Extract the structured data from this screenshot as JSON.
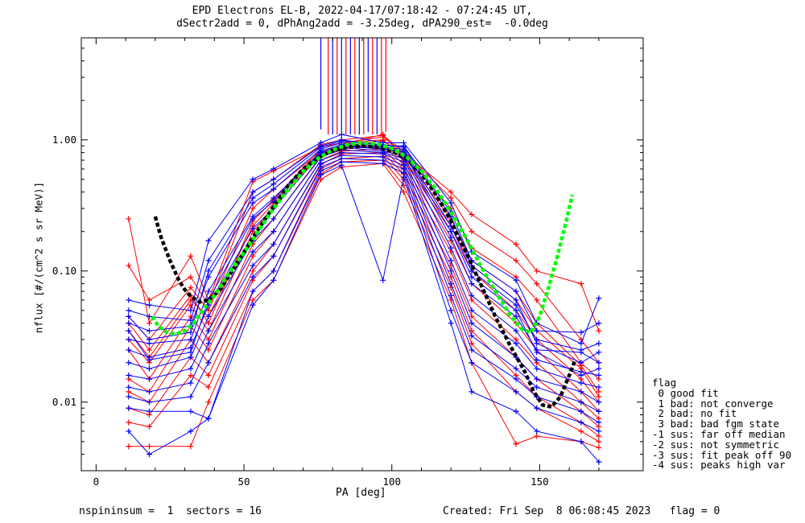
{
  "header": {
    "title_line1": "EPD Electrons EL-B, 2022-04-17/07:18:42 - 07:24:45 UT,",
    "title_line2": "dSectr2add = 0, dPhAng2add = -3.25deg, dPA290_est=  -0.0deg"
  },
  "legend": {
    "title": "flag",
    "items": [
      " 0 good fit",
      " 1 bad: not converge",
      " 2 bad: no fit",
      " 3 bad: bad fgm state",
      "-1 sus: far off median",
      "-2 sus: not symmetric",
      "-3 sus: fit peak off 90",
      "-4 sus: peaks high var"
    ]
  },
  "footer": {
    "left": "nspininsum =  1  sectors = 16",
    "right": "Created: Fri Sep  8 06:08:45 2023   flag = 0"
  },
  "colors": {
    "red": "#ff0000",
    "blue": "#0000ff",
    "black_fit": "#000000",
    "green_fit": "#00ff00"
  },
  "chart_data": {
    "type": "line",
    "xlabel": "PA [deg]",
    "ylabel": "nflux [#/(cm^2 s sr MeV)]",
    "xlim": [
      -5,
      185
    ],
    "ylim": [
      0.003,
      6
    ],
    "yscale": "log",
    "xticks": [
      0,
      50,
      100,
      150
    ],
    "yticks": [
      0.01,
      0.1,
      1.0
    ],
    "ytick_labels": [
      "0.01",
      "0.10",
      "1.00"
    ],
    "grid": false,
    "sector_pa": [
      11,
      18,
      32,
      38,
      53,
      60,
      76,
      83,
      97,
      104,
      120,
      127,
      142,
      149,
      164,
      170
    ],
    "series": [
      {
        "color": "red",
        "values": [
          0.25,
          0.04,
          0.13,
          0.06,
          0.48,
          0.58,
          0.88,
          0.95,
          1.05,
          0.8,
          0.4,
          0.27,
          0.16,
          0.1,
          0.08,
          0.035
        ]
      },
      {
        "color": "red",
        "values": [
          0.11,
          0.06,
          0.09,
          0.055,
          0.4,
          0.5,
          0.92,
          1.0,
          1.08,
          0.82,
          0.36,
          0.2,
          0.12,
          0.08,
          0.03,
          0.02
        ]
      },
      {
        "color": "red",
        "values": [
          0.045,
          0.03,
          0.075,
          0.05,
          0.3,
          0.42,
          0.82,
          0.9,
          0.98,
          0.78,
          0.3,
          0.15,
          0.09,
          0.06,
          0.02,
          0.015
        ]
      },
      {
        "color": "red",
        "values": [
          0.04,
          0.025,
          0.065,
          0.04,
          0.24,
          0.35,
          0.85,
          0.95,
          1.0,
          0.75,
          0.25,
          0.12,
          0.07,
          0.04,
          0.019,
          0.012
        ]
      },
      {
        "color": "red",
        "values": [
          0.03,
          0.02,
          0.055,
          0.035,
          0.2,
          0.3,
          0.8,
          0.88,
          0.92,
          0.7,
          0.2,
          0.1,
          0.05,
          0.03,
          0.015,
          0.01
        ]
      },
      {
        "color": "red",
        "values": [
          0.025,
          0.015,
          0.045,
          0.03,
          0.16,
          0.25,
          0.75,
          0.85,
          0.9,
          0.65,
          0.17,
          0.08,
          0.04,
          0.025,
          0.012,
          0.0085
        ]
      },
      {
        "color": "red",
        "values": [
          0.015,
          0.012,
          0.038,
          0.025,
          0.13,
          0.2,
          0.7,
          0.82,
          0.85,
          0.6,
          0.14,
          0.06,
          0.03,
          0.02,
          0.01,
          0.0075
        ]
      },
      {
        "color": "red",
        "values": [
          0.012,
          0.01,
          0.03,
          0.02,
          0.1,
          0.16,
          0.65,
          0.78,
          0.8,
          0.55,
          0.11,
          0.045,
          0.022,
          0.015,
          0.0085,
          0.0065
        ]
      },
      {
        "color": "red",
        "values": [
          0.009,
          0.008,
          0.022,
          0.016,
          0.085,
          0.13,
          0.6,
          0.72,
          0.75,
          0.5,
          0.09,
          0.035,
          0.016,
          0.011,
          0.007,
          0.0055
        ]
      },
      {
        "color": "red",
        "values": [
          0.007,
          0.0065,
          0.016,
          0.013,
          0.07,
          0.1,
          0.55,
          0.68,
          0.7,
          0.45,
          0.075,
          0.028,
          0.012,
          0.009,
          0.006,
          0.005
        ]
      },
      {
        "color": "red",
        "values": [
          0.0046,
          0.0046,
          0.0046,
          0.01,
          0.06,
          0.085,
          0.5,
          0.62,
          0.66,
          0.4,
          0.06,
          0.02,
          0.0048,
          0.0055,
          0.005,
          0.0045
        ]
      },
      {
        "color": "red",
        "values": [
          0.035,
          0.022,
          0.06,
          0.045,
          0.22,
          0.33,
          0.78,
          0.92,
          1.1,
          0.72,
          0.22,
          0.11,
          0.06,
          0.035,
          0.018,
          0.011
        ]
      },
      {
        "color": "blue",
        "values": [
          0.06,
          0.055,
          0.05,
          0.17,
          0.5,
          0.6,
          0.95,
          1.1,
          0.95,
          0.95,
          0.33,
          0.14,
          0.085,
          0.04,
          0.028,
          0.062
        ]
      },
      {
        "color": "blue",
        "values": [
          0.05,
          0.045,
          0.042,
          0.12,
          0.4,
          0.5,
          0.9,
          1.0,
          0.9,
          0.9,
          0.28,
          0.12,
          0.07,
          0.035,
          0.034,
          0.04
        ]
      },
      {
        "color": "blue",
        "values": [
          0.04,
          0.035,
          0.038,
          0.09,
          0.33,
          0.42,
          0.85,
          0.95,
          0.88,
          0.85,
          0.22,
          0.1,
          0.055,
          0.03,
          0.025,
          0.028
        ]
      },
      {
        "color": "blue",
        "values": [
          0.03,
          0.028,
          0.03,
          0.07,
          0.26,
          0.36,
          0.8,
          0.9,
          0.85,
          0.8,
          0.18,
          0.08,
          0.045,
          0.025,
          0.024,
          0.02
        ]
      },
      {
        "color": "blue",
        "values": [
          0.025,
          0.022,
          0.026,
          0.055,
          0.21,
          0.3,
          0.78,
          0.88,
          0.82,
          0.76,
          0.15,
          0.065,
          0.035,
          0.021,
          0.017,
          0.016
        ]
      },
      {
        "color": "blue",
        "values": [
          0.02,
          0.018,
          0.022,
          0.045,
          0.17,
          0.25,
          0.74,
          0.84,
          0.8,
          0.72,
          0.12,
          0.05,
          0.028,
          0.018,
          0.014,
          0.013
        ]
      },
      {
        "color": "blue",
        "values": [
          0.016,
          0.015,
          0.018,
          0.035,
          0.14,
          0.2,
          0.7,
          0.8,
          0.78,
          0.68,
          0.1,
          0.04,
          0.022,
          0.015,
          0.012,
          0.01
        ]
      },
      {
        "color": "blue",
        "values": [
          0.013,
          0.012,
          0.014,
          0.028,
          0.11,
          0.16,
          0.66,
          0.76,
          0.74,
          0.64,
          0.08,
          0.032,
          0.018,
          0.013,
          0.01,
          0.0085
        ]
      },
      {
        "color": "blue",
        "values": [
          0.011,
          0.01,
          0.011,
          0.02,
          0.09,
          0.13,
          0.62,
          0.72,
          0.7,
          0.6,
          0.065,
          0.025,
          0.015,
          0.011,
          0.0085,
          0.007
        ]
      },
      {
        "color": "blue",
        "values": [
          0.009,
          0.0085,
          0.0085,
          0.0075,
          0.07,
          0.1,
          0.58,
          0.68,
          0.66,
          0.56,
          0.05,
          0.02,
          0.012,
          0.009,
          0.007,
          0.006
        ]
      },
      {
        "color": "blue",
        "values": [
          0.006,
          0.004,
          0.006,
          0.0075,
          0.055,
          0.085,
          0.54,
          0.64,
          0.085,
          0.52,
          0.04,
          0.012,
          0.0085,
          0.006,
          0.005,
          0.0035
        ]
      },
      {
        "color": "blue",
        "values": [
          0.045,
          0.03,
          0.034,
          0.1,
          0.36,
          0.46,
          0.88,
          0.98,
          0.92,
          0.88,
          0.26,
          0.11,
          0.06,
          0.028,
          0.02,
          0.024
        ]
      },
      {
        "color": "blue",
        "values": [
          0.035,
          0.021,
          0.024,
          0.06,
          0.25,
          0.34,
          0.82,
          0.92,
          0.86,
          0.82,
          0.2,
          0.09,
          0.05,
          0.024,
          0.016,
          0.018
        ]
      }
    ],
    "spikes": {
      "pa": [
        76,
        78.5,
        80,
        81.5,
        83,
        84.5,
        86,
        87.5,
        89,
        90.5,
        92,
        93.5,
        95,
        96.5,
        98
      ],
      "colors": [
        "blue",
        "red",
        "blue",
        "red",
        "blue",
        "red",
        "blue",
        "red",
        "blue",
        "red",
        "blue",
        "red",
        "blue",
        "red",
        "red"
      ],
      "low": [
        1.2,
        1.1,
        1.1,
        1.1,
        1.15,
        1.1,
        1.1,
        1.1,
        1.1,
        1.1,
        1.15,
        1.1,
        1.1,
        1.1,
        1.15
      ],
      "high": 6
    },
    "fits": [
      {
        "color": "black",
        "style": "dashed",
        "x": [
          20,
          22,
          25,
          28,
          30,
          32,
          35,
          38,
          42,
          46,
          50,
          55,
          60,
          65,
          70,
          75,
          80,
          85,
          90,
          95,
          100,
          105,
          110,
          115,
          120,
          125,
          130,
          135,
          140,
          145,
          148,
          151,
          154,
          157,
          160,
          162
        ],
        "y": [
          0.26,
          0.18,
          0.12,
          0.085,
          0.072,
          0.064,
          0.058,
          0.06,
          0.072,
          0.1,
          0.14,
          0.21,
          0.31,
          0.45,
          0.6,
          0.73,
          0.83,
          0.88,
          0.9,
          0.88,
          0.82,
          0.72,
          0.55,
          0.38,
          0.24,
          0.14,
          0.08,
          0.045,
          0.027,
          0.017,
          0.012,
          0.0095,
          0.0092,
          0.011,
          0.016,
          0.021
        ]
      },
      {
        "color": "green",
        "style": "dashed",
        "x": [
          19,
          21,
          24,
          27,
          30,
          33,
          36,
          40,
          44,
          48,
          52,
          56,
          60,
          65,
          70,
          75,
          80,
          85,
          90,
          95,
          100,
          105,
          110,
          115,
          120,
          125,
          130,
          135,
          140,
          144,
          147,
          150,
          153,
          156,
          159,
          161
        ],
        "y": [
          0.045,
          0.038,
          0.034,
          0.033,
          0.035,
          0.04,
          0.05,
          0.065,
          0.09,
          0.12,
          0.16,
          0.22,
          0.3,
          0.42,
          0.57,
          0.72,
          0.84,
          0.92,
          0.95,
          0.93,
          0.86,
          0.74,
          0.58,
          0.42,
          0.28,
          0.18,
          0.11,
          0.07,
          0.046,
          0.036,
          0.034,
          0.045,
          0.075,
          0.13,
          0.24,
          0.38
        ]
      }
    ]
  }
}
